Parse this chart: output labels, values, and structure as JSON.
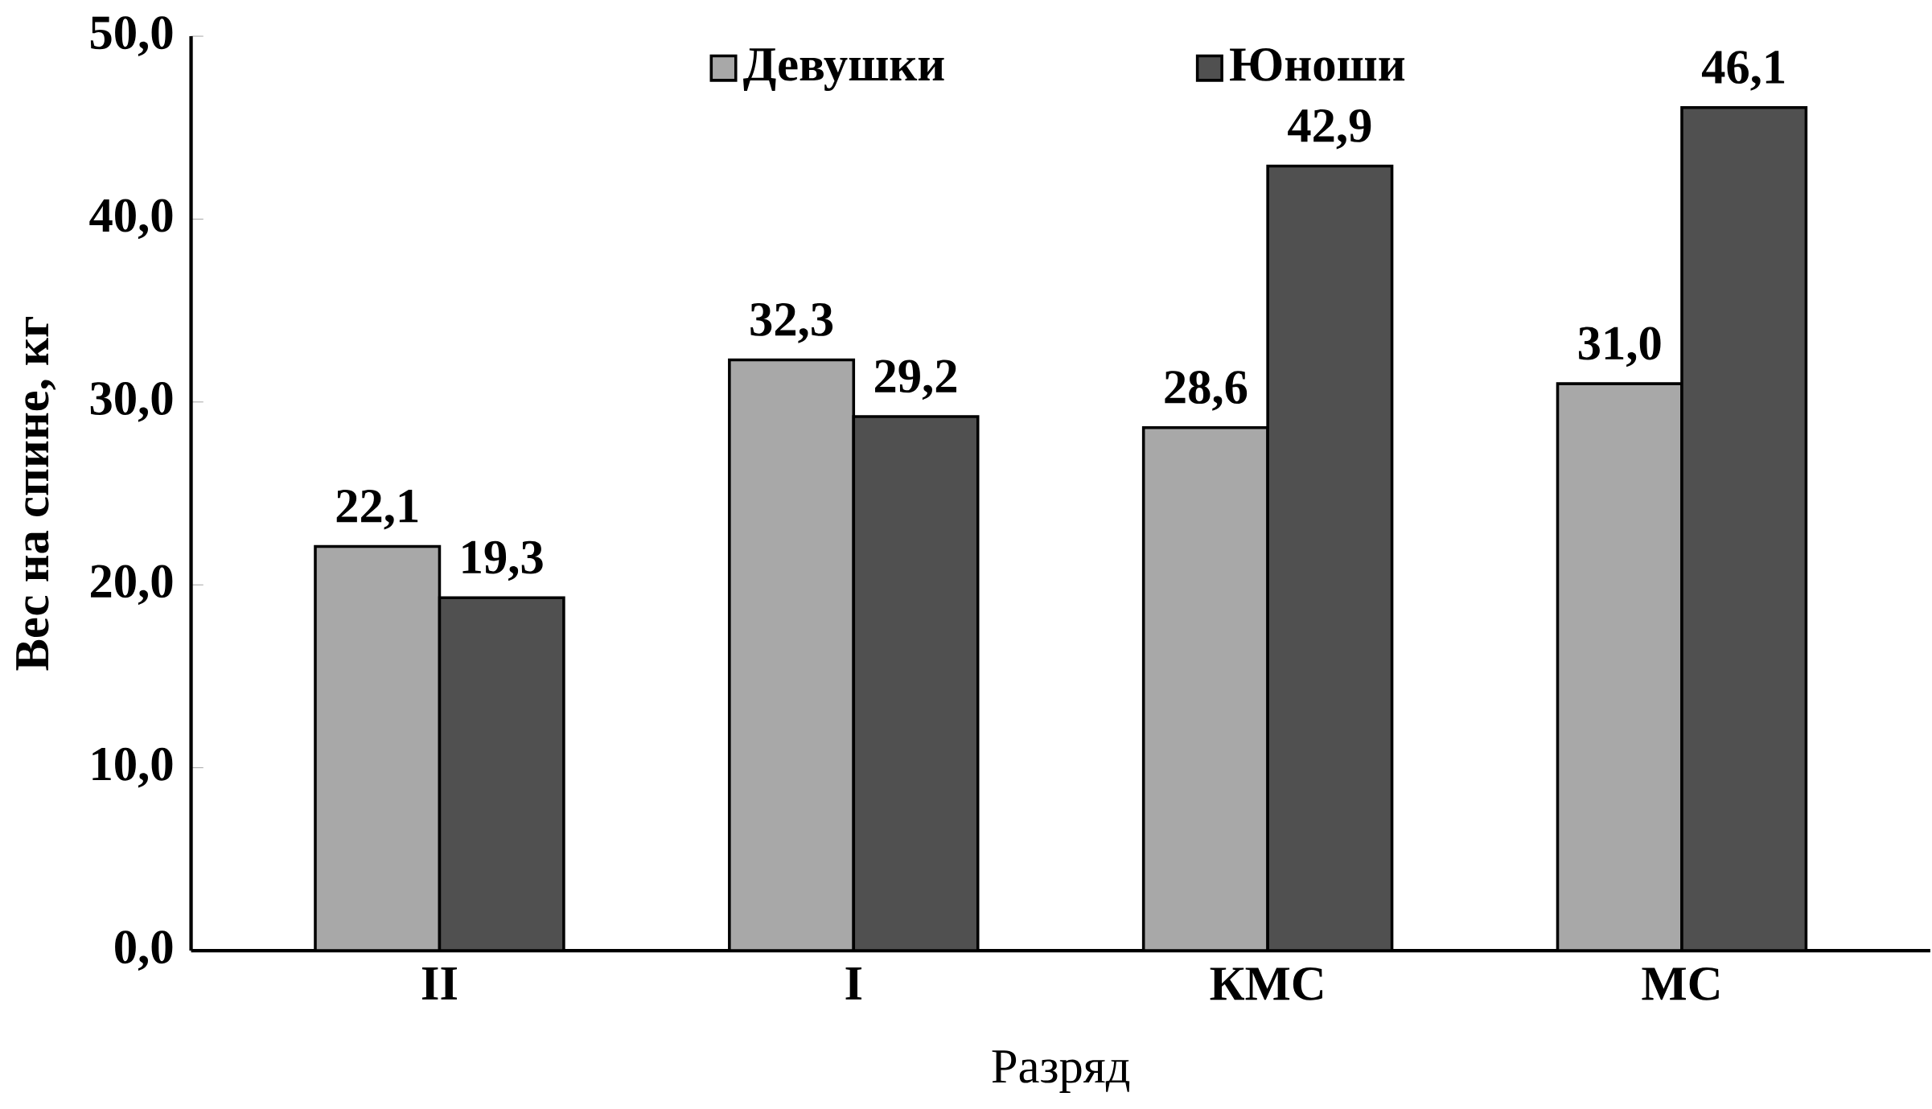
{
  "chart_data": {
    "type": "bar",
    "xlabel": "Разряд",
    "ylabel": "Вес на спине, кг",
    "categories": [
      "II",
      "I",
      "КМС",
      "МС"
    ],
    "series": [
      {
        "name": "Девушки",
        "color": "#a8a8a8",
        "values": [
          22.1,
          32.3,
          28.6,
          31.0
        ],
        "value_labels": [
          "22,1",
          "32,3",
          "28,6",
          "31,0"
        ]
      },
      {
        "name": "Юноши",
        "color": "#505050",
        "values": [
          19.3,
          29.2,
          42.9,
          46.1
        ],
        "value_labels": [
          "19,3",
          "29,2",
          "42,9",
          "46,1"
        ]
      }
    ],
    "ylim": [
      0,
      50
    ],
    "yticks": [
      {
        "value": 0,
        "label": "0,0"
      },
      {
        "value": 10,
        "label": "10,0"
      },
      {
        "value": 20,
        "label": "20,0"
      },
      {
        "value": 30,
        "label": "30,0"
      },
      {
        "value": 40,
        "label": "40,0"
      },
      {
        "value": 50,
        "label": "50,0"
      }
    ],
    "legend": "top",
    "grid": false
  }
}
